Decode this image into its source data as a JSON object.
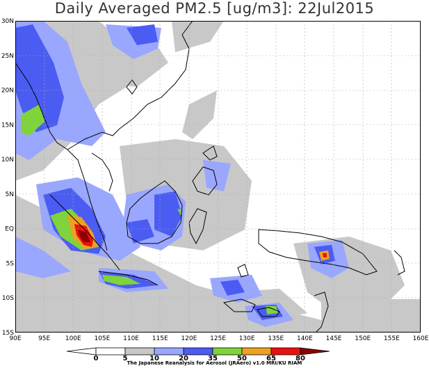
{
  "title": "Daily Averaged PM2.5 [ug/m3]: 22Jul2015",
  "lat_labels": [
    "30N",
    "25N",
    "20N",
    "15N",
    "10N",
    "5N",
    "EQ",
    "5S",
    "10S",
    "15S"
  ],
  "lon_labels": [
    "90E",
    "95E",
    "100E",
    "105E",
    "110E",
    "115E",
    "120E",
    "125E",
    "130E",
    "135E",
    "140E",
    "145E",
    "150E",
    "155E",
    "160E"
  ],
  "legend": {
    "thresholds": [
      "0",
      "5",
      "10",
      "20",
      "35",
      "50",
      "65",
      "80"
    ],
    "colors": [
      "#ffffff",
      "#ffffff",
      "#c8c8c8",
      "#9aa7ff",
      "#4b5cf2",
      "#7ed43a",
      "#f0a020",
      "#e8120e",
      "#8c0000"
    ]
  },
  "credit": "The Japanese Reanalysis for Aerosol (JRAero) v1.0 MRI/KU RIAM",
  "colors": {
    "gray": "#c8c8c8",
    "lightblue": "#9aa7ff",
    "blue": "#4b5cf2",
    "green": "#7ed43a",
    "orange": "#f0a020",
    "red": "#e8120e",
    "darkred": "#8c0000"
  }
}
